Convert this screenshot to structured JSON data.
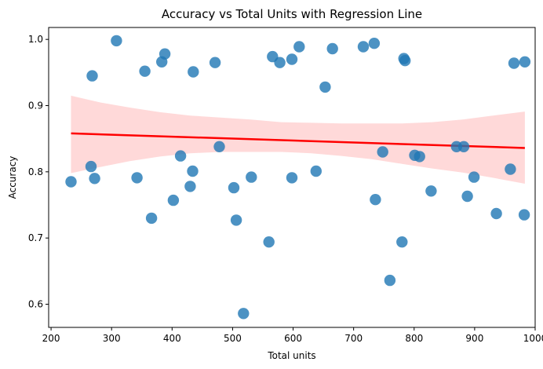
{
  "chart_data": {
    "type": "scatter",
    "title": "Accuracy vs Total Units with Regression Line",
    "xlabel": "Total units",
    "ylabel": "Accuracy",
    "xlim": [
      196,
      1000
    ],
    "ylim": [
      0.565,
      1.018
    ],
    "xticks": [
      200,
      300,
      400,
      500,
      600,
      700,
      800,
      900,
      1000
    ],
    "yticks": [
      0.6,
      0.7,
      0.8,
      0.9,
      1.0
    ],
    "grid": false,
    "colors": {
      "points": "#1f77b4",
      "regression_line": "#ff0000",
      "confidence_band": "#ffb3b3"
    },
    "points": [
      [
        233,
        0.785
      ],
      [
        266,
        0.808
      ],
      [
        268,
        0.945
      ],
      [
        272,
        0.79
      ],
      [
        308,
        0.998
      ],
      [
        342,
        0.791
      ],
      [
        355,
        0.952
      ],
      [
        366,
        0.73
      ],
      [
        383,
        0.966
      ],
      [
        388,
        0.978
      ],
      [
        402,
        0.757
      ],
      [
        414,
        0.824
      ],
      [
        430,
        0.778
      ],
      [
        434,
        0.801
      ],
      [
        435,
        0.951
      ],
      [
        471,
        0.965
      ],
      [
        478,
        0.838
      ],
      [
        502,
        0.776
      ],
      [
        506,
        0.727
      ],
      [
        518,
        0.586
      ],
      [
        531,
        0.792
      ],
      [
        560,
        0.694
      ],
      [
        566,
        0.974
      ],
      [
        578,
        0.965
      ],
      [
        598,
        0.791
      ],
      [
        598,
        0.97
      ],
      [
        610,
        0.989
      ],
      [
        638,
        0.801
      ],
      [
        653,
        0.928
      ],
      [
        665,
        0.986
      ],
      [
        716,
        0.989
      ],
      [
        734,
        0.994
      ],
      [
        736,
        0.758
      ],
      [
        748,
        0.83
      ],
      [
        760,
        0.636
      ],
      [
        780,
        0.694
      ],
      [
        783,
        0.971
      ],
      [
        785,
        0.968
      ],
      [
        801,
        0.825
      ],
      [
        809,
        0.823
      ],
      [
        828,
        0.771
      ],
      [
        870,
        0.838
      ],
      [
        882,
        0.838
      ],
      [
        888,
        0.763
      ],
      [
        899,
        0.792
      ],
      [
        936,
        0.737
      ],
      [
        959,
        0.804
      ],
      [
        965,
        0.964
      ],
      [
        982,
        0.735
      ],
      [
        983,
        0.966
      ]
    ],
    "regression": {
      "x": [
        233,
        983
      ],
      "y": [
        0.858,
        0.836
      ]
    },
    "confidence_band": {
      "x": [
        233,
        280,
        330,
        380,
        430,
        480,
        530,
        580,
        630,
        680,
        730,
        780,
        830,
        880,
        930,
        983
      ],
      "upper": [
        0.915,
        0.905,
        0.897,
        0.89,
        0.885,
        0.882,
        0.879,
        0.875,
        0.874,
        0.873,
        0.873,
        0.873,
        0.875,
        0.879,
        0.885,
        0.891
      ],
      "lower": [
        0.798,
        0.807,
        0.816,
        0.823,
        0.828,
        0.83,
        0.83,
        0.83,
        0.828,
        0.824,
        0.819,
        0.812,
        0.805,
        0.799,
        0.791,
        0.782
      ]
    }
  }
}
